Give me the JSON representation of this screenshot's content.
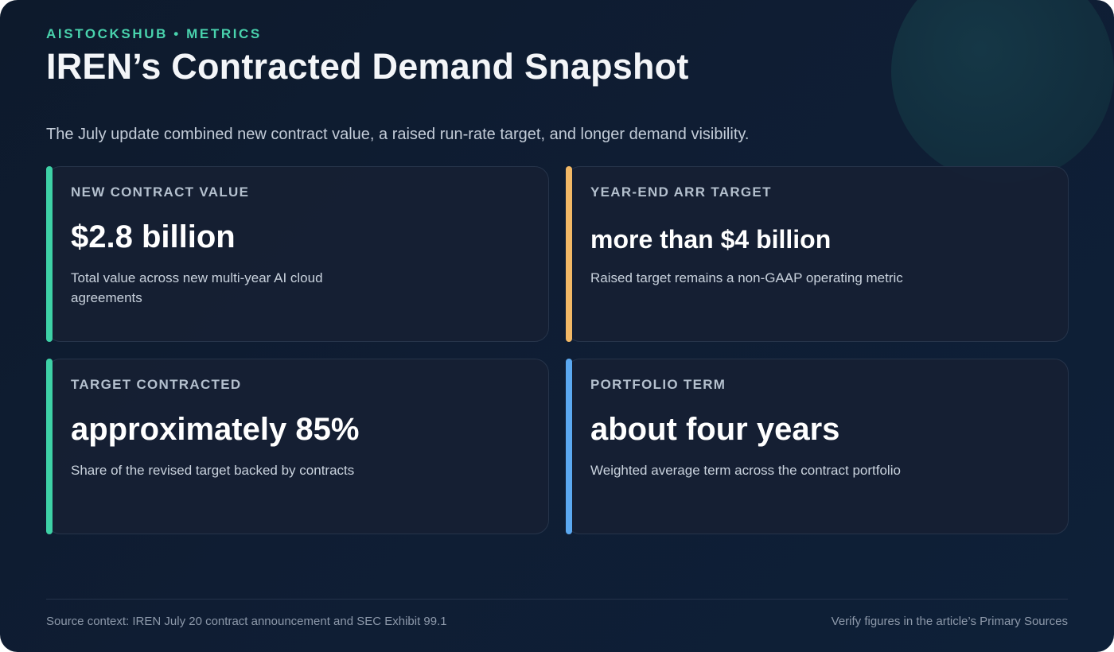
{
  "header": {
    "eyebrow": "AISTOCKSHUB • METRICS",
    "title": "IREN’s Contracted Demand Snapshot",
    "subtitle": "The July update combined new contract value, a raised run-rate target, and longer demand visibility."
  },
  "cards": [
    {
      "label": "NEW CONTRACT VALUE",
      "value": "$2.8 billion",
      "description": "Total value across new multi-year AI cloud agreements",
      "accent_color": "#3ed1a6"
    },
    {
      "label": "YEAR-END ARR TARGET",
      "value": "more than $4 billion",
      "description": "Raised target remains a non-GAAP operating metric",
      "accent_color": "#f2b866"
    },
    {
      "label": "TARGET CONTRACTED",
      "value": "approximately 85%",
      "description": "Share of the revised target backed by contracts",
      "accent_color": "#3ed1a6"
    },
    {
      "label": "PORTFOLIO TERM",
      "value": "about four years",
      "description": "Weighted average term across the contract portfolio",
      "accent_color": "#5ba8f0"
    }
  ],
  "footer": {
    "source": "Source context: IREN July 20 contract announcement and SEC Exhibit 99.1",
    "verify": "Verify figures in the article’s Primary Sources"
  },
  "colors": {
    "background": "#0f1d33",
    "eyebrow": "#49d3ad",
    "card_background": "#162033"
  }
}
